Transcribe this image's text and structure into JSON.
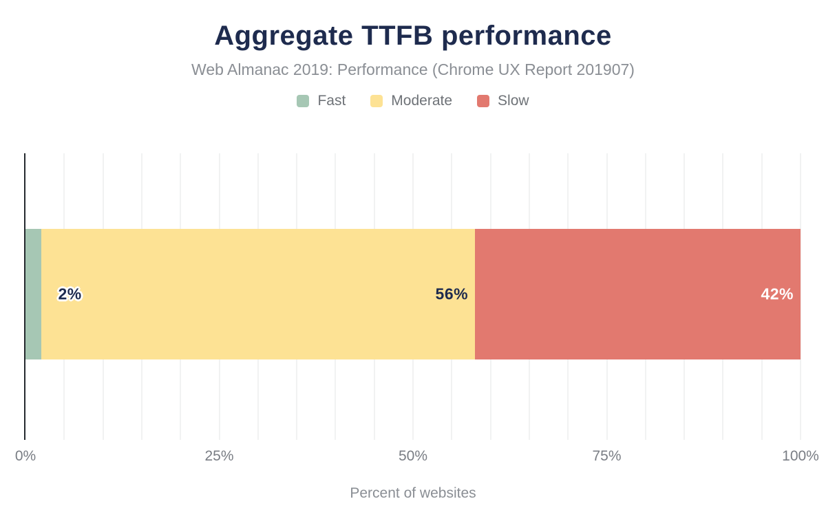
{
  "header": {
    "title": "Aggregate TTFB performance",
    "subtitle": "Web Almanac 2019: Performance (Chrome UX Report 201907)"
  },
  "colors": {
    "navy": "#1e2b4e",
    "subtitle-gray": "#8a8e94",
    "legend-gray": "#6e7277",
    "tick-gray": "#797d84",
    "axis-color": "#24292e",
    "gridline": "#f1f2f2"
  },
  "chart_data": {
    "type": "bar",
    "orientation": "horizontal",
    "stacked": true,
    "title": "Aggregate TTFB performance",
    "subtitle": "Web Almanac 2019: Performance (Chrome UX Report 201907)",
    "xlabel": "Percent of websites",
    "xlim": [
      0,
      100
    ],
    "x_tick_labels": [
      "0%",
      "25%",
      "50%",
      "75%",
      "100%"
    ],
    "grid": "vertical light gridlines every 5%",
    "legend_position": "top-center",
    "series": [
      {
        "name": "Fast",
        "value": 2,
        "label": "2%",
        "color": "#a6c7b4",
        "label_color": "#1e2b4e",
        "label_placement": "outside-end"
      },
      {
        "name": "Moderate",
        "value": 56,
        "label": "56%",
        "color": "#fde294",
        "label_color": "#1e2b4e",
        "label_placement": "inside-end"
      },
      {
        "name": "Slow",
        "value": 42,
        "label": "42%",
        "color": "#e2796f",
        "label_color": "#ffffff",
        "label_placement": "inside-end"
      }
    ]
  }
}
